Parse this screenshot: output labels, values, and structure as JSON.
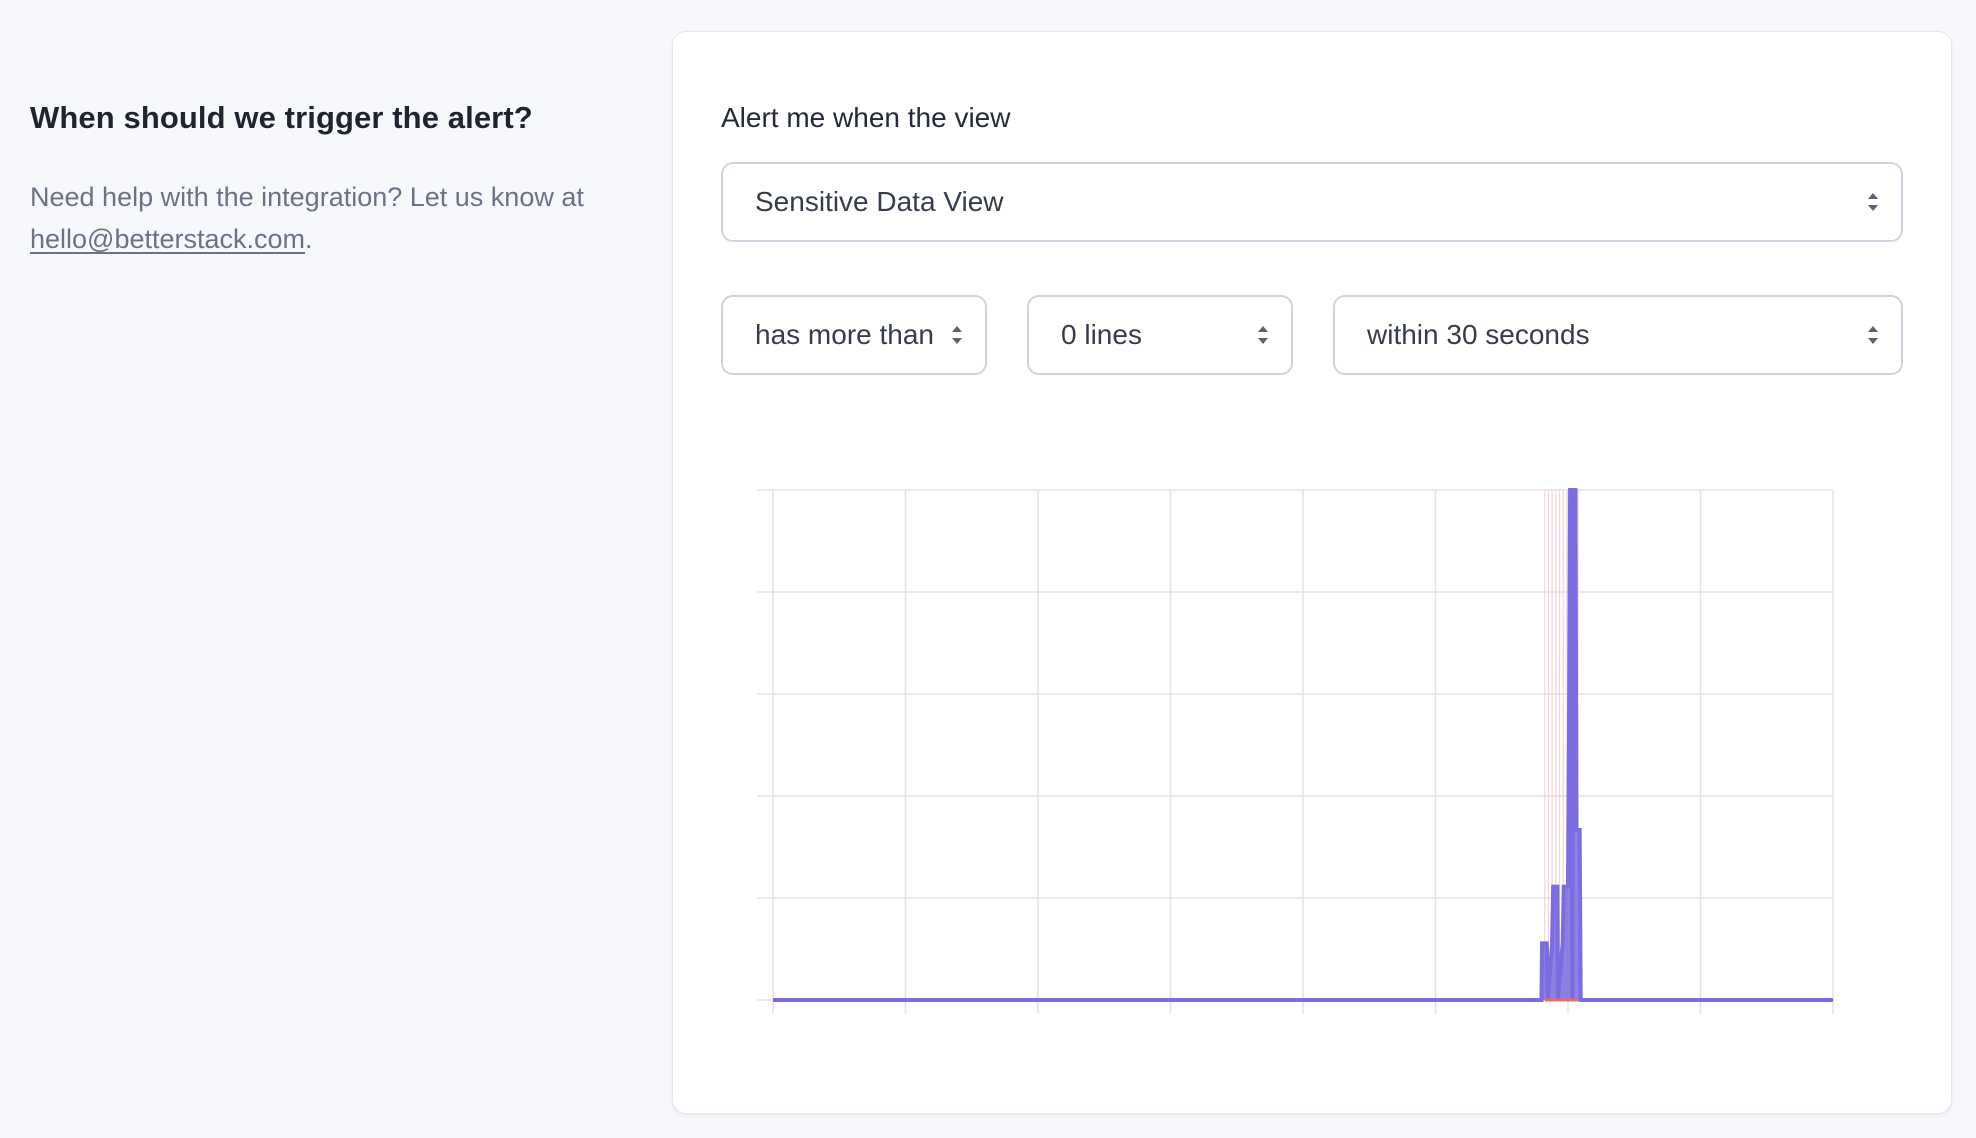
{
  "section": {
    "heading": "When should we trigger the alert?",
    "help_prefix": "Need help with the integration? Let us know at ",
    "help_email": "hello@betterstack.com",
    "help_suffix": "."
  },
  "alert": {
    "label": "Alert me when the view",
    "view_select": "Sensitive Data View",
    "condition_select": "has more than",
    "lines_select": "0 lines",
    "window_select": "within 30 seconds"
  },
  "colors": {
    "series": "#7b6ce0",
    "threshold_band": "#f3c9cd",
    "threshold_line": "#e86b73",
    "grid": "#e2e3e8"
  },
  "chart_data": {
    "type": "area",
    "title": "",
    "xlabel": "",
    "ylabel": "",
    "x_grid_lines": 8,
    "y_grid_lines": 5,
    "ylim": [
      0,
      9
    ],
    "x": [
      0.0,
      0.725,
      0.7255,
      0.73,
      0.731,
      0.735,
      0.736,
      0.74,
      0.7405,
      0.745,
      0.746,
      0.75,
      0.751,
      0.752,
      0.753,
      0.754,
      0.755,
      0.756,
      0.757,
      0.758,
      0.759,
      0.76,
      0.761,
      0.762,
      0.763,
      1.0
    ],
    "series": [
      {
        "values": [
          0,
          0,
          1,
          1,
          0,
          1,
          2,
          2,
          0,
          1,
          2,
          2,
          5,
          9,
          9,
          0,
          9,
          9,
          9,
          3,
          3,
          3,
          3,
          0,
          0,
          0
        ]
      }
    ],
    "threshold": 0,
    "threshold_band_x": [
      0.728,
      0.76
    ]
  }
}
